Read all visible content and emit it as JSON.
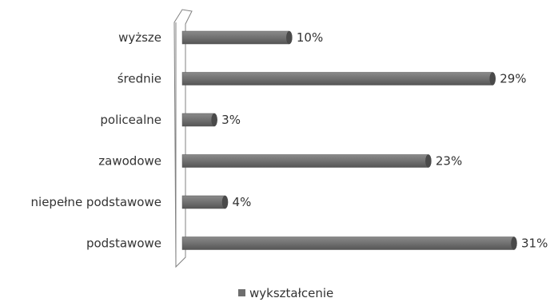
{
  "chart_data": {
    "type": "bar",
    "orientation": "horizontal",
    "categories": [
      "wyższe",
      "średnie",
      "policealne",
      "zawodowe",
      "niepełne podstawowe",
      "podstawowe"
    ],
    "series": [
      {
        "name": "wykształcenie",
        "values": [
          10,
          29,
          3,
          23,
          4,
          31
        ],
        "labels": [
          "10%",
          "29%",
          "3%",
          "23%",
          "4%",
          "31%"
        ]
      }
    ],
    "xlim": [
      0,
      31
    ],
    "grid": false,
    "legend": "bottom",
    "colors": {
      "bar": "#6e6e6e",
      "bar_end": "#4a4a4a",
      "axis": "#808080"
    }
  }
}
